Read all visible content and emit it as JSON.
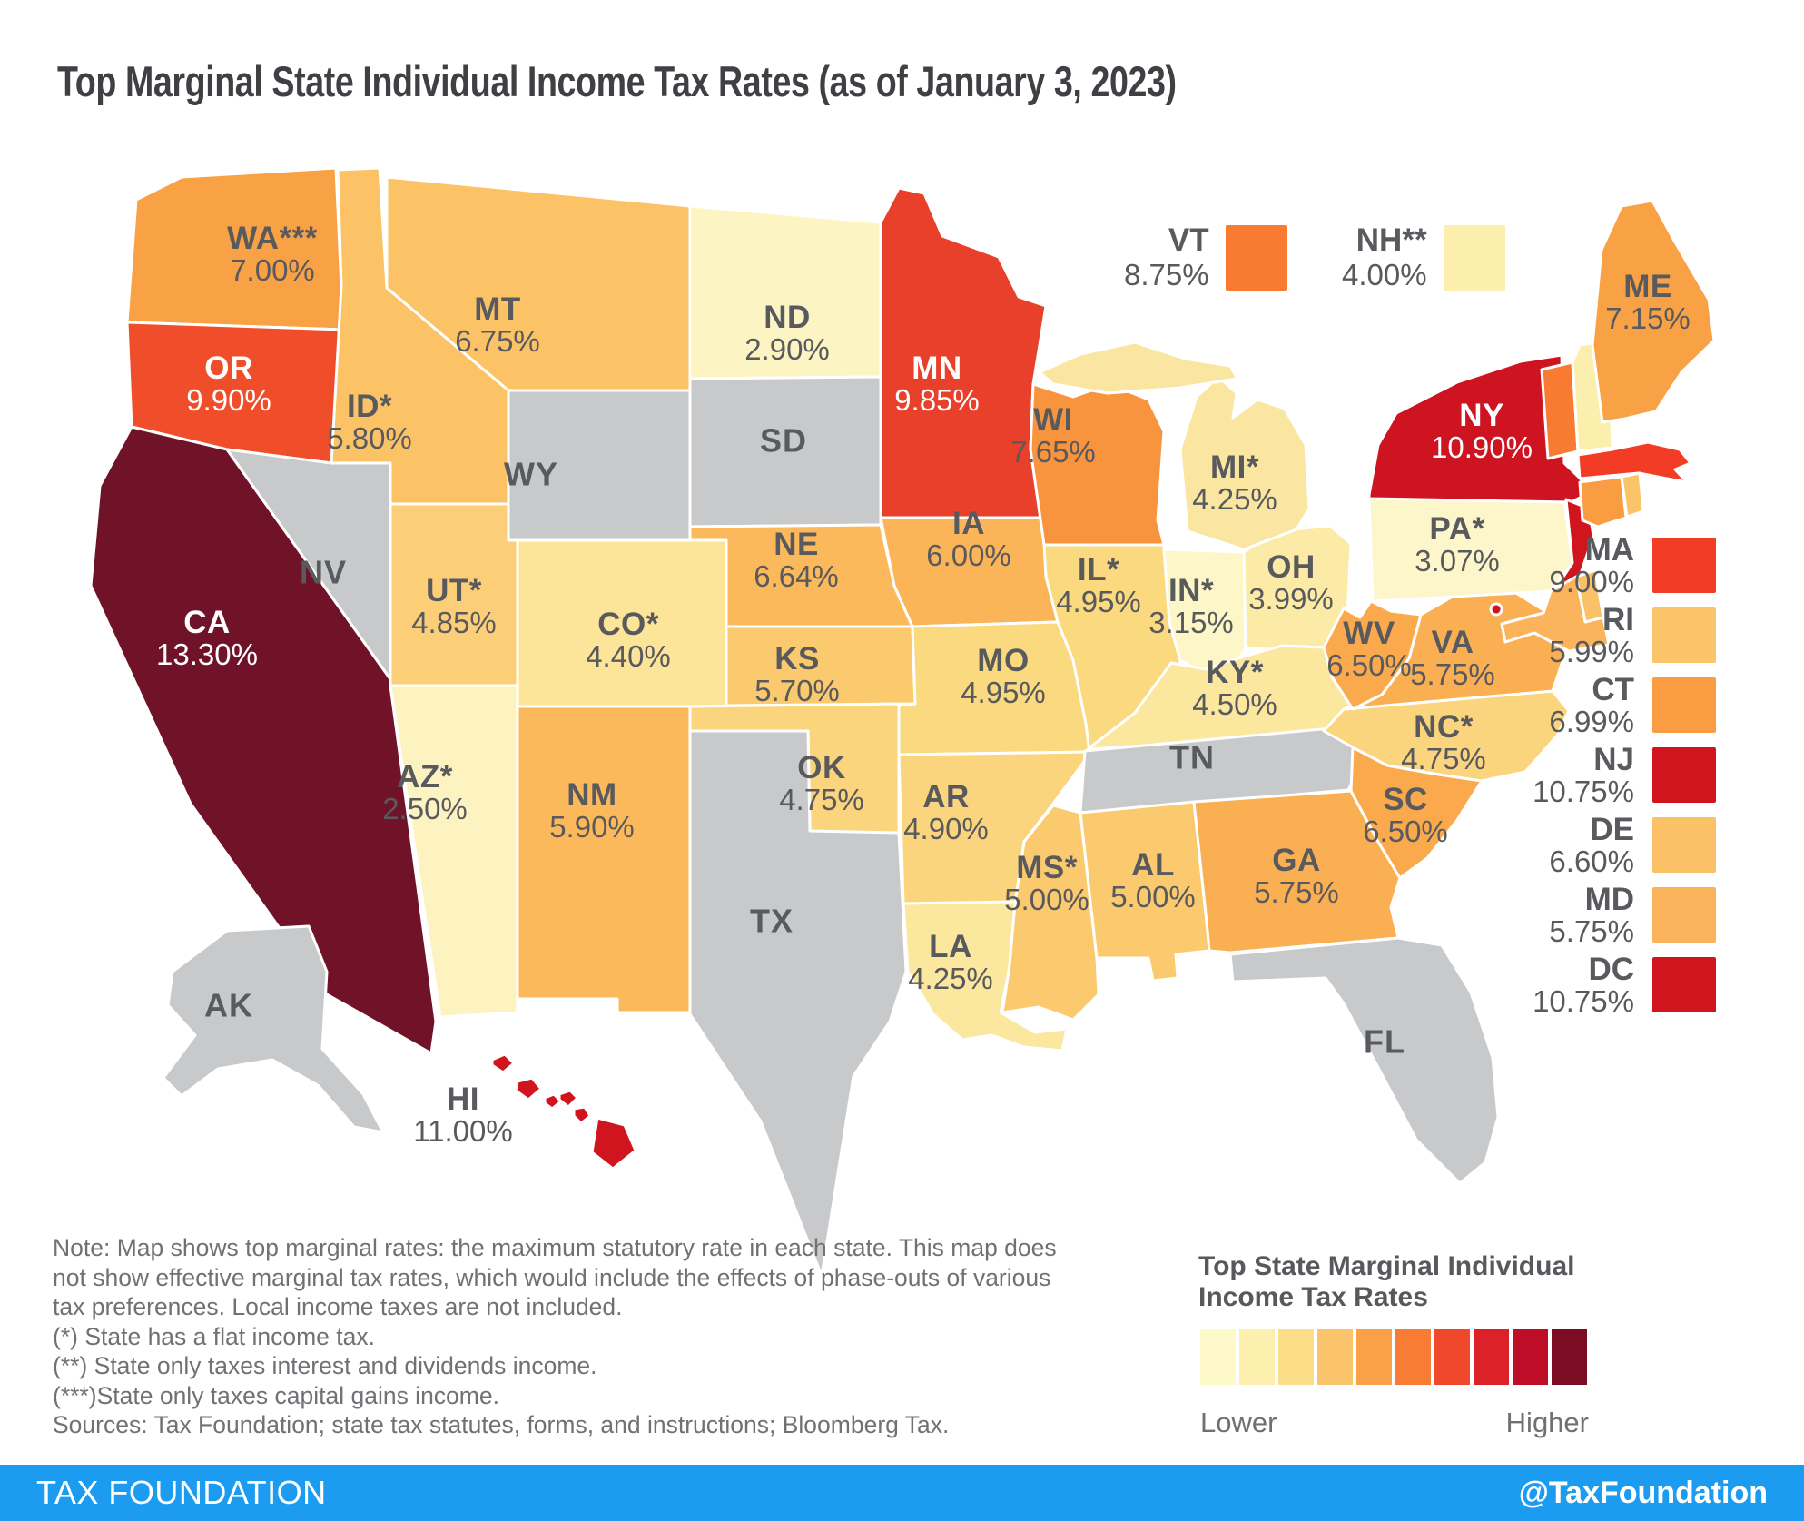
{
  "title": "Top Marginal State Individual Income Tax Rates (as of January 3, 2023)",
  "chart_data": {
    "type": "heatmap",
    "subtype": "us-choropleth",
    "title": "Top Marginal State Individual Income Tax Rates (as of January 3, 2023)",
    "unit": "%",
    "legend_title": "Top State Marginal Individual Income Tax Rates",
    "legend_range": [
      "Lower",
      "Higher"
    ],
    "no_income_tax_states": [
      "AK",
      "FL",
      "NV",
      "SD",
      "TN",
      "TX",
      "WY"
    ],
    "values": {
      "AL": 5.0,
      "AK": null,
      "AZ": 2.5,
      "AR": 4.9,
      "CA": 13.3,
      "CO": 4.4,
      "CT": 6.99,
      "DE": 6.6,
      "DC": 10.75,
      "FL": null,
      "GA": 5.75,
      "HI": 11.0,
      "ID": 5.8,
      "IL": 4.95,
      "IN": 3.15,
      "IA": 6.0,
      "KS": 5.7,
      "KY": 4.5,
      "LA": 4.25,
      "ME": 7.15,
      "MD": 5.75,
      "MA": 9.0,
      "MI": 4.25,
      "MN": 9.85,
      "MS": 5.0,
      "MO": 4.95,
      "MT": 6.75,
      "NE": 6.64,
      "NV": null,
      "NH": 4.0,
      "NJ": 10.75,
      "NM": 5.9,
      "NY": 10.9,
      "NC": 4.75,
      "ND": 2.9,
      "OH": 3.99,
      "OK": 4.75,
      "OR": 9.9,
      "PA": 3.07,
      "RI": 5.99,
      "SC": 6.5,
      "SD": null,
      "TN": null,
      "TX": null,
      "UT": 4.85,
      "VT": 8.75,
      "VA": 5.75,
      "WA": 7.0,
      "WV": 6.5,
      "WI": 7.65,
      "WY": null
    }
  },
  "map": {
    "no_tax_color": "#C8C9CB",
    "border_color": "#FFFFFF",
    "dark_label_color": "#595A5E",
    "states": [
      {
        "id": "WA",
        "label": "WA***",
        "value": "7.00%",
        "color": "#F9A145",
        "label_color": "dark"
      },
      {
        "id": "OR",
        "label": "OR",
        "value": "9.90%",
        "color": "#F04E2B",
        "label_color": "white"
      },
      {
        "id": "CA",
        "label": "CA",
        "value": "13.30%",
        "color": "#701328",
        "label_color": "white"
      },
      {
        "id": "ID",
        "label": "ID*",
        "value": "5.80%",
        "color": "#FBC266",
        "label_color": "dark"
      },
      {
        "id": "NV",
        "label": "NV",
        "value": null,
        "color": null,
        "label_color": "dark"
      },
      {
        "id": "UT",
        "label": "UT*",
        "value": "4.85%",
        "color": "#FCCE77",
        "label_color": "dark"
      },
      {
        "id": "AZ",
        "label": "AZ*",
        "value": "2.50%",
        "color": "#FDF3C0",
        "label_color": "dark"
      },
      {
        "id": "MT",
        "label": "MT",
        "value": "6.75%",
        "color": "#FBC266",
        "label_color": "dark"
      },
      {
        "id": "WY",
        "label": "WY",
        "value": null,
        "color": null,
        "label_color": "dark"
      },
      {
        "id": "CO",
        "label": "CO*",
        "value": "4.40%",
        "color": "#FCE498",
        "label_color": "dark"
      },
      {
        "id": "NM",
        "label": "NM",
        "value": "5.90%",
        "color": "#FBB95C",
        "label_color": "dark"
      },
      {
        "id": "ND",
        "label": "ND",
        "value": "2.90%",
        "color": "#FDF4C4",
        "label_color": "dark"
      },
      {
        "id": "SD",
        "label": "SD",
        "value": null,
        "color": null,
        "label_color": "dark"
      },
      {
        "id": "NE",
        "label": "NE",
        "value": "6.64%",
        "color": "#FBB95C",
        "label_color": "dark"
      },
      {
        "id": "KS",
        "label": "KS",
        "value": "5.70%",
        "color": "#FBCA6F",
        "label_color": "dark"
      },
      {
        "id": "OK",
        "label": "OK",
        "value": "4.75%",
        "color": "#FBD57E",
        "label_color": "dark"
      },
      {
        "id": "TX",
        "label": "TX",
        "value": null,
        "color": null,
        "label_color": "dark"
      },
      {
        "id": "MN",
        "label": "MN",
        "value": "9.85%",
        "color": "#E8402B",
        "label_color": "white"
      },
      {
        "id": "IA",
        "label": "IA",
        "value": "6.00%",
        "color": "#FBB558",
        "label_color": "dark"
      },
      {
        "id": "MO",
        "label": "MO",
        "value": "4.95%",
        "color": "#FBD97F",
        "label_color": "dark"
      },
      {
        "id": "AR",
        "label": "AR",
        "value": "4.90%",
        "color": "#FBD57E",
        "label_color": "dark"
      },
      {
        "id": "LA",
        "label": "LA",
        "value": "4.25%",
        "color": "#FCE79F",
        "label_color": "dark"
      },
      {
        "id": "WI",
        "label": "WI",
        "value": "7.65%",
        "color": "#F9943E",
        "label_color": "dark"
      },
      {
        "id": "IL",
        "label": "IL*",
        "value": "4.95%",
        "color": "#FBD97F",
        "label_color": "dark"
      },
      {
        "id": "IN",
        "label": "IN*",
        "value": "3.15%",
        "color": "#FDF6C6",
        "label_color": "dark"
      },
      {
        "id": "OH",
        "label": "OH",
        "value": "3.99%",
        "color": "#FCEBA7",
        "label_color": "dark"
      },
      {
        "id": "MI",
        "label": "MI*",
        "value": "4.25%",
        "color": "#FAE6A0",
        "label_color": "dark"
      },
      {
        "id": "MIUP",
        "label": null,
        "value": null,
        "color": "#FAE6A0",
        "label_color": "dark"
      },
      {
        "id": "KY",
        "label": "KY*",
        "value": "4.50%",
        "color": "#FCE79F",
        "label_color": "dark"
      },
      {
        "id": "TN",
        "label": "TN",
        "value": null,
        "color": null,
        "label_color": "dark"
      },
      {
        "id": "MS",
        "label": "MS*",
        "value": "5.00%",
        "color": "#FBC96E",
        "label_color": "dark"
      },
      {
        "id": "AL",
        "label": "AL",
        "value": "5.00%",
        "color": "#FBC96E",
        "label_color": "dark"
      },
      {
        "id": "GA",
        "label": "GA",
        "value": "5.75%",
        "color": "#FAAF52",
        "label_color": "dark"
      },
      {
        "id": "FL",
        "label": "FL",
        "value": null,
        "color": null,
        "label_color": "dark"
      },
      {
        "id": "SC",
        "label": "SC",
        "value": "6.50%",
        "color": "#FAAA4D",
        "label_color": "dark"
      },
      {
        "id": "NC",
        "label": "NC*",
        "value": "4.75%",
        "color": "#FBD57E",
        "label_color": "dark"
      },
      {
        "id": "VA",
        "label": "VA",
        "value": "5.75%",
        "color": "#FAAF52",
        "label_color": "dark"
      },
      {
        "id": "WV",
        "label": "WV",
        "value": "6.50%",
        "color": "#FAAA4D",
        "label_color": "dark"
      },
      {
        "id": "PA",
        "label": "PA*",
        "value": "3.07%",
        "color": "#FDF6CA",
        "label_color": "dark"
      },
      {
        "id": "NY",
        "label": "NY",
        "value": "10.90%",
        "color": "#CE1420",
        "label_color": "white"
      },
      {
        "id": "LI",
        "label": null,
        "value": null,
        "color": "#CE1420",
        "label_color": "dark"
      },
      {
        "id": "NJ",
        "label": null,
        "value": null,
        "color": "#D0151F",
        "label_color": "dark"
      },
      {
        "id": "DE",
        "label": null,
        "value": null,
        "color": "#FBC166",
        "label_color": "dark"
      },
      {
        "id": "MD",
        "label": null,
        "value": null,
        "color": "#FBB45B",
        "label_color": "dark"
      },
      {
        "id": "DC",
        "label": null,
        "value": null,
        "color": "#D0151F",
        "label_color": "dark"
      },
      {
        "id": "VT",
        "label": null,
        "value": null,
        "color": "#F97B31",
        "label_color": "dark"
      },
      {
        "id": "NH",
        "label": null,
        "value": null,
        "color": "#FCEFAE",
        "label_color": "dark"
      },
      {
        "id": "ME",
        "label": "ME",
        "value": "7.15%",
        "color": "#F9A145",
        "label_color": "dark"
      },
      {
        "id": "MA",
        "label": null,
        "value": null,
        "color": "#F23C26",
        "label_color": "dark"
      },
      {
        "id": "CT",
        "label": null,
        "value": null,
        "color": "#FA9D42",
        "label_color": "dark"
      },
      {
        "id": "RI",
        "label": null,
        "value": null,
        "color": "#FBC468",
        "label_color": "dark"
      },
      {
        "id": "AK",
        "label": "AK",
        "value": null,
        "color": null,
        "label_color": "dark"
      },
      {
        "id": "HI",
        "label": "HI",
        "value": "11.00%",
        "color": "#D0151F",
        "label_color": "dark"
      }
    ]
  },
  "callouts_top": [
    {
      "id": "VT",
      "label": "VT",
      "value": "8.75%",
      "color": "#F97B31"
    },
    {
      "id": "NH",
      "label": "NH**",
      "value": "4.00%",
      "color": "#FCEFAE"
    }
  ],
  "callouts_right": [
    {
      "id": "MA",
      "label": "MA",
      "value": "9.00%",
      "color": "#F23C26"
    },
    {
      "id": "RI",
      "label": "RI",
      "value": "5.99%",
      "color": "#FBC468"
    },
    {
      "id": "CT",
      "label": "CT",
      "value": "6.99%",
      "color": "#FA9D42"
    },
    {
      "id": "NJ",
      "label": "NJ",
      "value": "10.75%",
      "color": "#D0151F"
    },
    {
      "id": "DE",
      "label": "DE",
      "value": "6.60%",
      "color": "#FBC166"
    },
    {
      "id": "MD",
      "label": "MD",
      "value": "5.75%",
      "color": "#FBB45B"
    },
    {
      "id": "DC",
      "label": "DC",
      "value": "10.75%",
      "color": "#D0151F"
    }
  ],
  "notes": {
    "lines": [
      "Note: Map shows top marginal rates: the maximum statutory rate in each state. This map does",
      "not show effective marginal tax rates, which would include the effects of phase-outs of various",
      "tax preferences. Local income taxes are not included.",
      "(*) State has a flat income tax.",
      "(**) State only taxes interest and dividends income.",
      "(***)State only taxes capital gains income.",
      "Sources: Tax Foundation; state tax statutes, forms, and instructions; Bloomberg Tax."
    ]
  },
  "legend": {
    "title": "Top State Marginal Individual Income Tax Rates",
    "lower_label": "Lower",
    "higher_label": "Higher",
    "colors": [
      "#FEF9C8",
      "#FDEFAD",
      "#FCDE89",
      "#FBC36B",
      "#FAA148",
      "#F97C35",
      "#F0482A",
      "#DD2128",
      "#BE0E27",
      "#7A0D23"
    ]
  },
  "footer": {
    "brand": "TAX FOUNDATION",
    "handle": "@TaxFoundation",
    "bg_color": "#1C9CF0"
  }
}
